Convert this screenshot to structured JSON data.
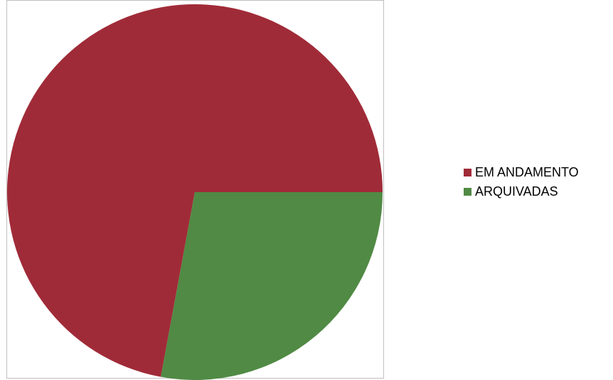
{
  "chart_data": {
    "type": "pie",
    "title": "",
    "legend_position": "right",
    "start_angle_deg": 0,
    "direction": "counterclockwise",
    "slices": [
      {
        "label": "EM ANDAMENTO",
        "value": 72.1,
        "color": "#A02B38"
      },
      {
        "label": "ARQUIVADAS",
        "value": 27.9,
        "color": "#508A44"
      }
    ]
  }
}
